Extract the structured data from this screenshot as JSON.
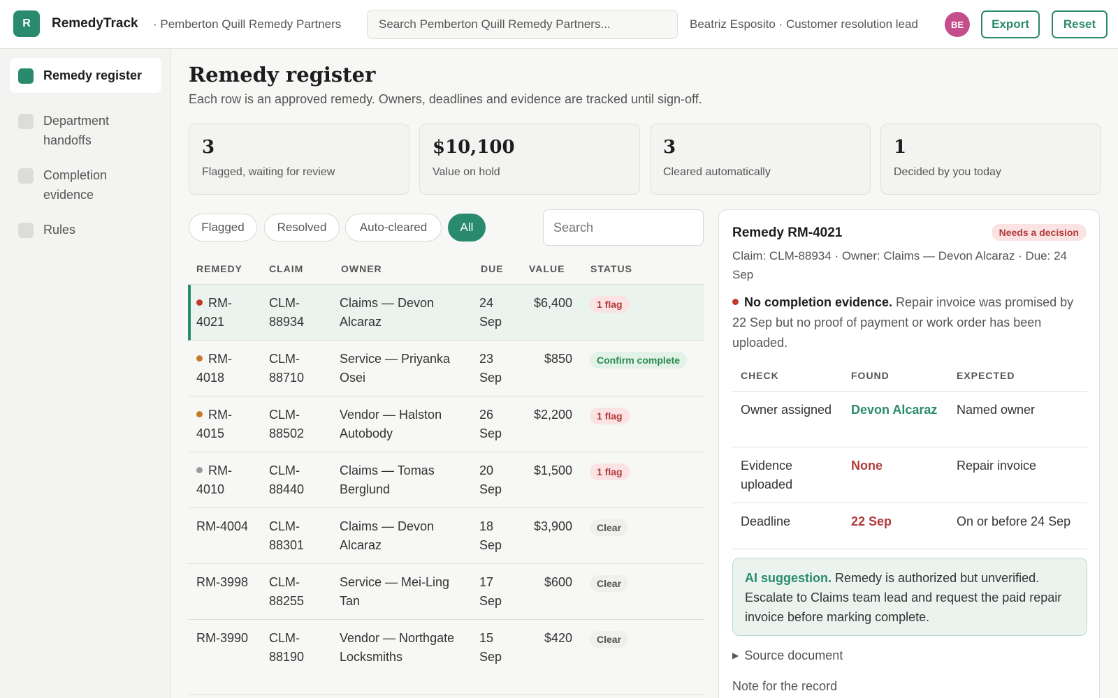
{
  "app": {
    "logo_letter": "R",
    "name": "RemedyTrack",
    "org": "· Pemberton Quill Remedy Partners",
    "search_value": "Search Pemberton Quill Remedy Partners...",
    "user": "Beatriz Esposito · Customer resolution lead",
    "avatar_initials": "BE",
    "avatar_color": "#c44d8c",
    "accent_color": "#2a8a6e",
    "export_label": "Export",
    "reset_label": "Reset"
  },
  "sidebar": {
    "items": [
      {
        "label": "Remedy register",
        "active": true
      },
      {
        "label": "Department handoffs",
        "active": false
      },
      {
        "label": "Completion evidence",
        "active": false
      },
      {
        "label": "Rules",
        "active": false
      }
    ]
  },
  "main": {
    "title": "Remedy register",
    "subtitle": "Each row is an approved remedy. Owners, deadlines and evidence are tracked until sign-off."
  },
  "stats": [
    {
      "value": "3",
      "label": "Flagged, waiting for review"
    },
    {
      "value": "$10,100",
      "label": "Value on hold"
    },
    {
      "value": "3",
      "label": "Cleared automatically"
    },
    {
      "value": "1",
      "label": "Decided by you today"
    }
  ],
  "filters": {
    "chips": [
      {
        "label": "Flagged",
        "active": false
      },
      {
        "label": "Resolved",
        "active": false
      },
      {
        "label": "Auto-cleared",
        "active": false
      },
      {
        "label": "All",
        "active": true
      }
    ],
    "search_placeholder": "Search"
  },
  "table": {
    "headers": [
      "REMEDY",
      "CLAIM",
      "OWNER",
      "DUE",
      "VALUE",
      "STATUS"
    ],
    "rows": [
      {
        "remedy": "RM-4021",
        "claim": "CLM-88934",
        "owner": "Claims — Devon Alcaraz",
        "due": "24 Sep",
        "value": "$6,400",
        "status": "1 flag",
        "status_kind": "flag",
        "dot": "#c0392b",
        "selected": true
      },
      {
        "remedy": "RM-4018",
        "claim": "CLM-88710",
        "owner": "Service — Priyanka Osei",
        "due": "23 Sep",
        "value": "$850",
        "status": "Confirm complete",
        "status_kind": "confirm",
        "dot": "#c87a2a",
        "selected": false
      },
      {
        "remedy": "RM-4015",
        "claim": "CLM-88502",
        "owner": "Vendor — Halston Autobody",
        "due": "26 Sep",
        "value": "$2,200",
        "status": "1 flag",
        "status_kind": "flag",
        "dot": "#c87a2a",
        "selected": false
      },
      {
        "remedy": "RM-4010",
        "claim": "CLM-88440",
        "owner": "Claims — Tomas Berglund",
        "due": "20 Sep",
        "value": "$1,500",
        "status": "1 flag",
        "status_kind": "flag",
        "dot": "#9a9aa0",
        "selected": false
      },
      {
        "remedy": "RM-4004",
        "claim": "CLM-88301",
        "owner": "Claims — Devon Alcaraz",
        "due": "18 Sep",
        "value": "$3,900",
        "status": "Clear",
        "status_kind": "clear",
        "dot": "",
        "selected": false
      },
      {
        "remedy": "RM-3998",
        "claim": "CLM-88255",
        "owner": "Service — Mei-Ling Tan",
        "due": "17 Sep",
        "value": "$600",
        "status": "Clear",
        "status_kind": "clear",
        "dot": "",
        "selected": false
      },
      {
        "remedy": "RM-3990",
        "claim": "CLM-88190",
        "owner": "Vendor — Northgate Locksmiths",
        "due": "15 Sep",
        "value": "$420",
        "status": "Clear",
        "status_kind": "clear",
        "dot": "",
        "selected": false
      }
    ]
  },
  "detail": {
    "title": "Remedy RM-4021",
    "badge": "Needs a decision",
    "meta": "Claim: CLM-88934 · Owner: Claims — Devon Alcaraz · Due: 24 Sep",
    "issue_bold": "No completion evidence.",
    "issue_text": " Repair invoice was promised by 22 Sep but no proof of payment or work order has been uploaded.",
    "checks_headers": [
      "CHECK",
      "FOUND",
      "EXPECTED"
    ],
    "checks": [
      {
        "check": "Owner assigned",
        "found": "Devon Alcaraz",
        "found_color": "#2a8a6e",
        "expected": "Named owner"
      },
      {
        "check": "Evidence uploaded",
        "found": "None",
        "found_color": "#b23b3b",
        "expected": "Repair invoice"
      },
      {
        "check": "Deadline",
        "found": "22 Sep",
        "found_color": "#b23b3b",
        "expected": "On or before 24 Sep"
      }
    ],
    "ai_label": "AI suggestion.",
    "ai_text": " Remedy is authorized but unverified. Escalate to Claims team lead and request the paid repair invoice before marking complete.",
    "source_doc": "Source document",
    "note_label": "Note for the record"
  }
}
